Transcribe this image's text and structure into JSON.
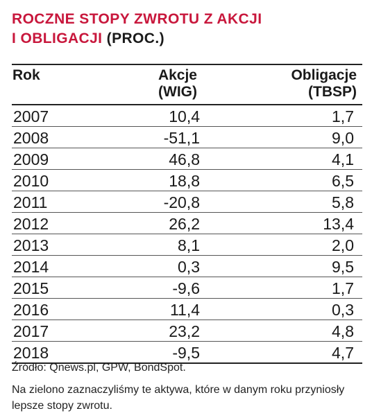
{
  "title": {
    "main_line1": "ROCZNE STOPY ZWROTU Z AKCJI",
    "main_line2": "I OBLIGACJI",
    "unit": "(PROC.)"
  },
  "table": {
    "headers": {
      "rok": "Rok",
      "akcje_line1": "Akcje",
      "akcje_line2": "(WIG)",
      "obligacje_line1": "Obligacje",
      "obligacje_line2": "(TBSP)"
    },
    "rows": [
      {
        "rok": "2007",
        "akcje": "10,4",
        "obligacje": "1,7"
      },
      {
        "rok": "2008",
        "akcje": "-51,1",
        "obligacje": "9,0"
      },
      {
        "rok": "2009",
        "akcje": "46,8",
        "obligacje": "4,1"
      },
      {
        "rok": "2010",
        "akcje": "18,8",
        "obligacje": "6,5"
      },
      {
        "rok": "2011",
        "akcje": "-20,8",
        "obligacje": "5,8"
      },
      {
        "rok": "2012",
        "akcje": "26,2",
        "obligacje": "13,4"
      },
      {
        "rok": "2013",
        "akcje": "8,1",
        "obligacje": "2,0"
      },
      {
        "rok": "2014",
        "akcje": "0,3",
        "obligacje": "9,5"
      },
      {
        "rok": "2015",
        "akcje": "-9,6",
        "obligacje": "1,7"
      },
      {
        "rok": "2016",
        "akcje": "11,4",
        "obligacje": "0,3"
      },
      {
        "rok": "2017",
        "akcje": "23,2",
        "obligacje": "4,8"
      },
      {
        "rok": "2018",
        "akcje": "-9,5",
        "obligacje": "4,7"
      }
    ]
  },
  "source": "Źródło: Qnews.pl, GPW, BondSpot.",
  "note": "Na zielono zaznaczyliśmy te aktywa, które w danym roku przyniosły lepsze stopy zwrotu.",
  "colors": {
    "accent": "#c8173c",
    "text": "#1a1a1a"
  }
}
